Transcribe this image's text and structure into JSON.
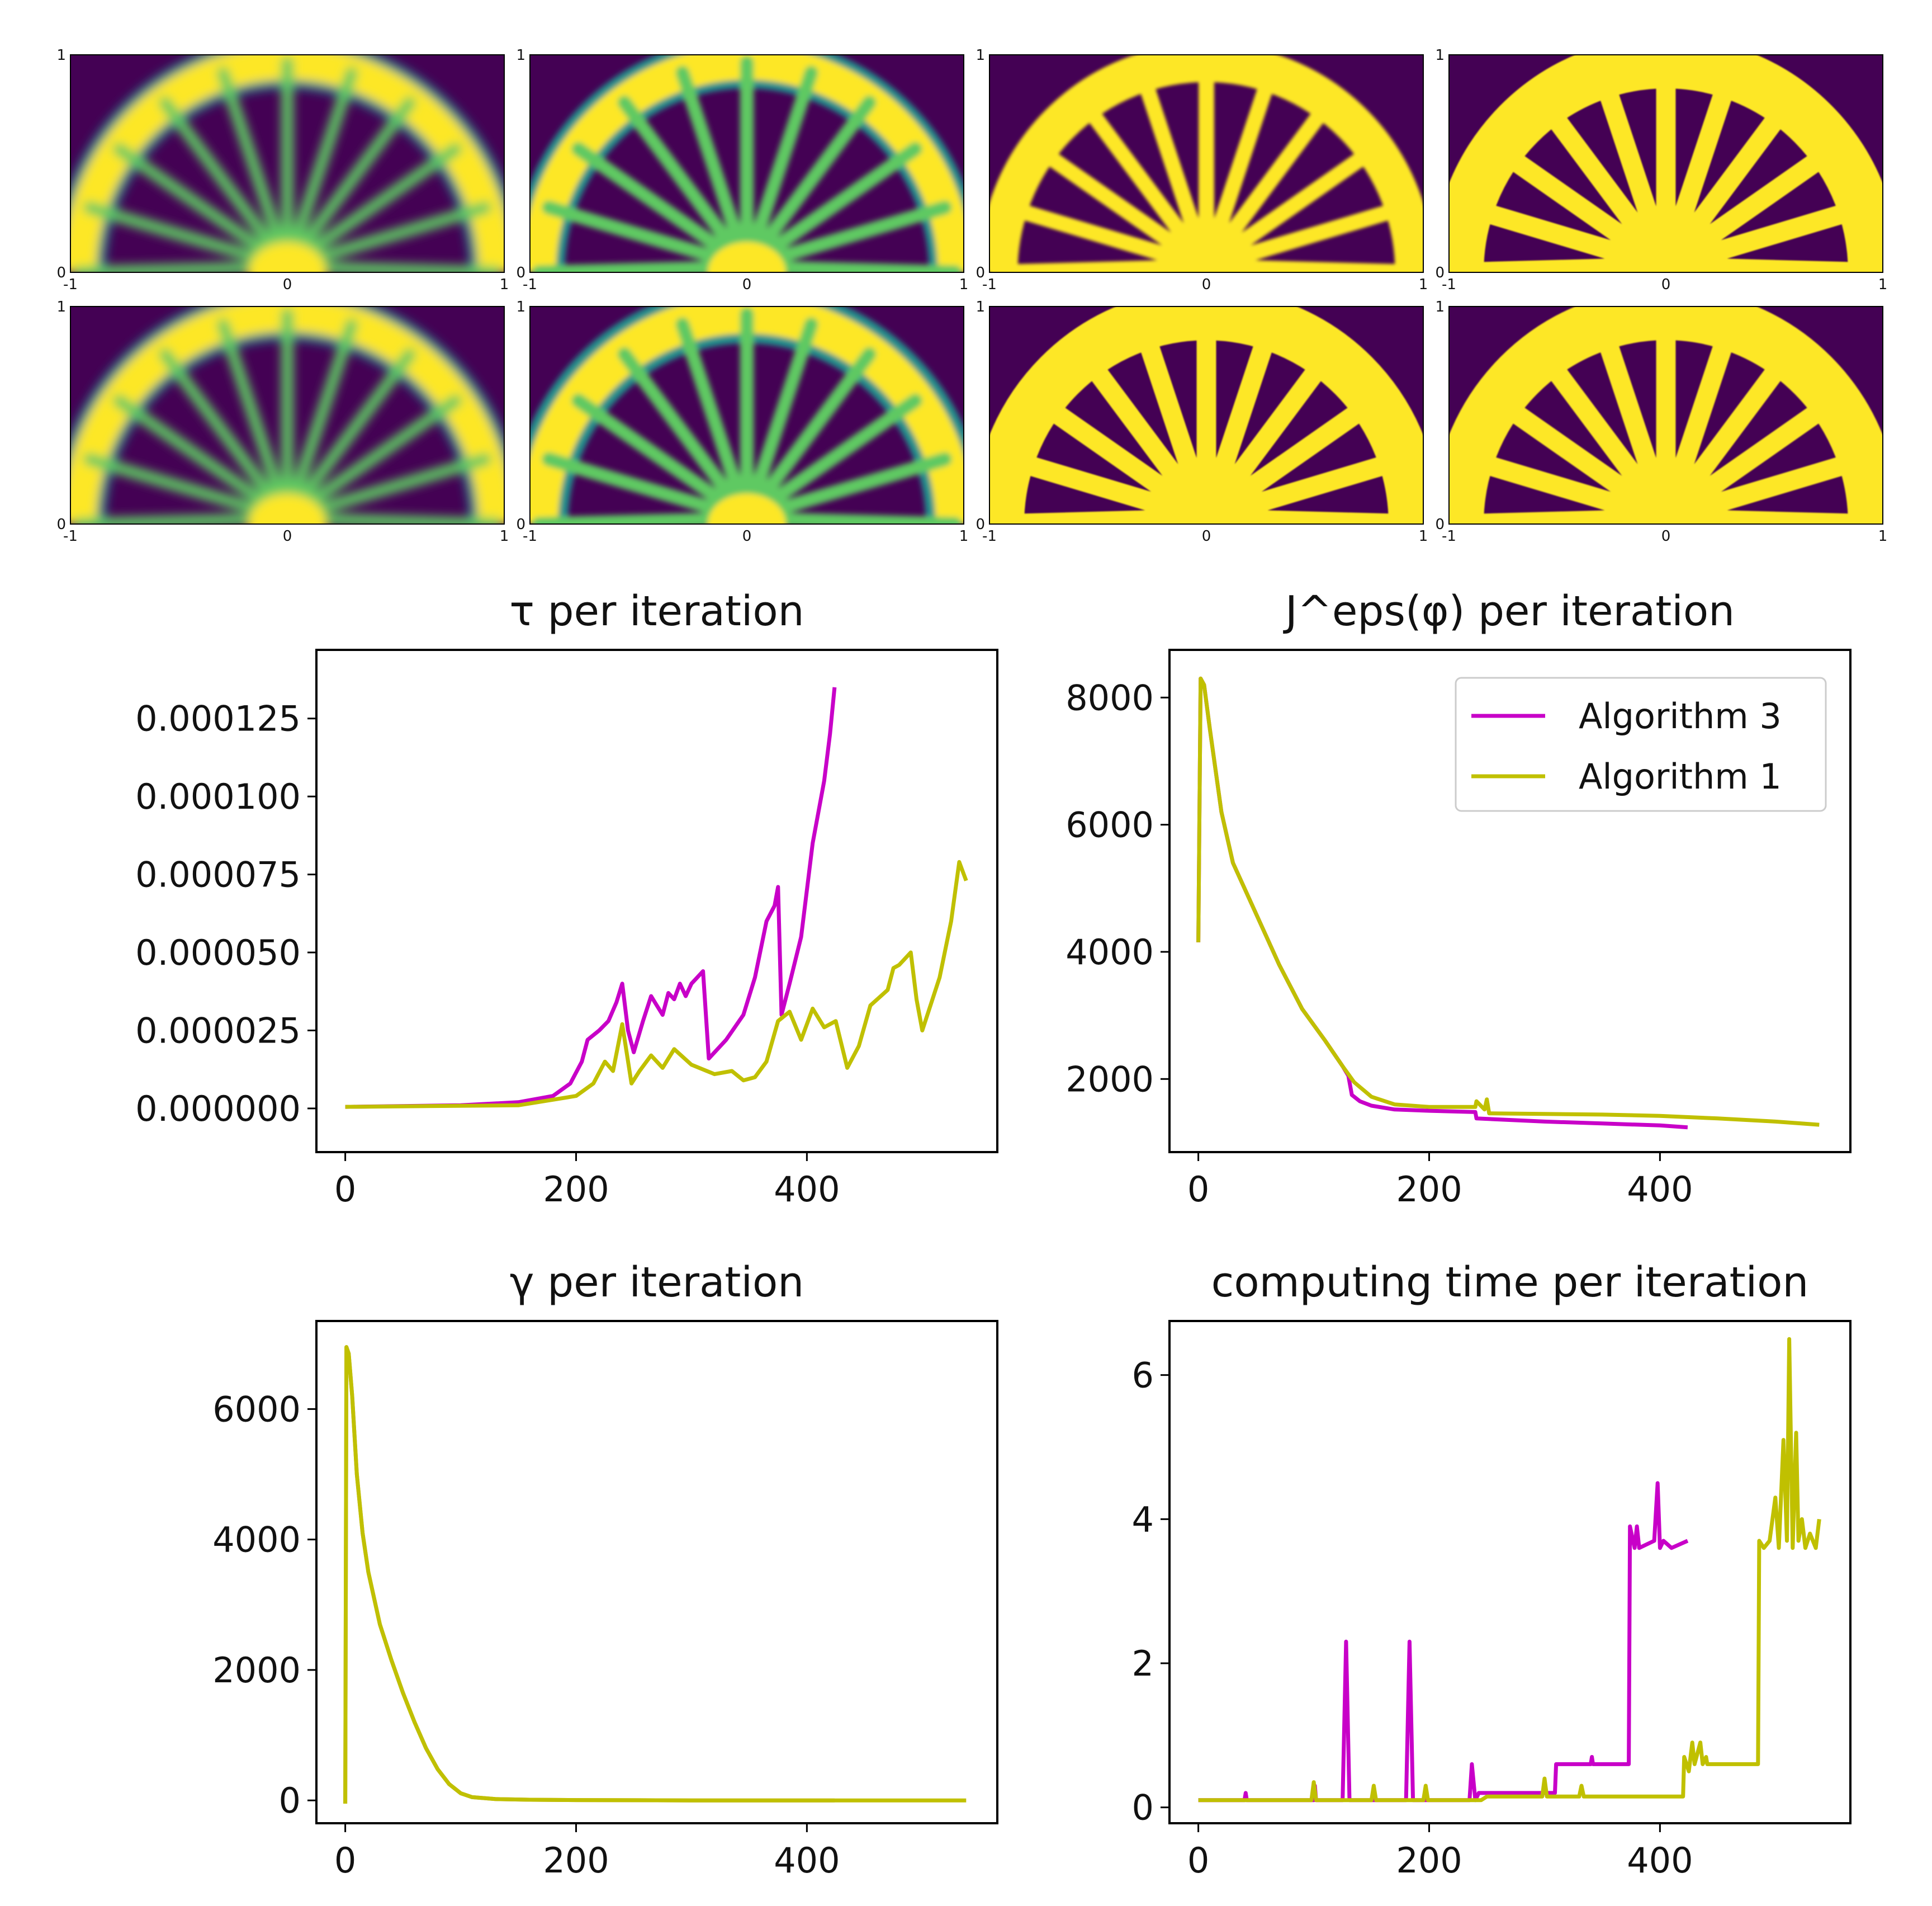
{
  "colors": {
    "alg3": "#c800c8",
    "alg1": "#c0c000",
    "overlap": "#c89a3c",
    "viridis_dark": "#440154",
    "viridis_teal": "#21918c",
    "viridis_green": "#5ec962",
    "viridis_yellow": "#fde725"
  },
  "images": {
    "xticks": [
      "-1",
      "0",
      "1"
    ],
    "yticks": [
      "0",
      "1"
    ],
    "description_rows": 2,
    "description_cols": 4,
    "panels": [
      {
        "row": 0,
        "col": 0,
        "thickness": 0.06,
        "blur": 0.7,
        "arc": 0.08
      },
      {
        "row": 0,
        "col": 1,
        "thickness": 0.07,
        "blur": 0.4,
        "arc": 0.08
      },
      {
        "row": 0,
        "col": 2,
        "thickness": 0.08,
        "blur": 0.3,
        "arc": 0.09
      },
      {
        "row": 0,
        "col": 3,
        "thickness": 0.1,
        "blur": 0.05,
        "arc": 0.12
      },
      {
        "row": 1,
        "col": 0,
        "thickness": 0.06,
        "blur": 0.6,
        "arc": 0.08
      },
      {
        "row": 1,
        "col": 1,
        "thickness": 0.07,
        "blur": 0.35,
        "arc": 0.09
      },
      {
        "row": 1,
        "col": 2,
        "thickness": 0.1,
        "blur": 0.05,
        "arc": 0.12
      },
      {
        "row": 1,
        "col": 3,
        "thickness": 0.1,
        "blur": 0.05,
        "arc": 0.12
      }
    ]
  },
  "chart_data": [
    {
      "type": "line",
      "title": "τ per iteration",
      "xlim": [
        -25,
        565
      ],
      "ylim": [
        -1.4e-05,
        0.000147
      ],
      "xticks": [
        0,
        200,
        400
      ],
      "xtick_labels": [
        "0",
        "200",
        "400"
      ],
      "yticks": [
        0,
        2.5e-05,
        5e-05,
        7.5e-05,
        0.0001,
        0.000125
      ],
      "ytick_labels": [
        "0.000000",
        "0.000025",
        "0.000050",
        "0.000075",
        "0.000100",
        "0.000125"
      ],
      "series": [
        {
          "name": "Algorithm 3",
          "color": "alg3",
          "x": [
            0,
            100,
            150,
            180,
            195,
            205,
            210,
            220,
            228,
            235,
            240,
            245,
            250,
            258,
            265,
            270,
            275,
            280,
            285,
            290,
            295,
            300,
            305,
            310,
            315,
            330,
            345,
            355,
            365,
            372,
            375,
            378,
            385,
            395,
            405,
            415,
            420,
            424
          ],
          "y": [
            5e-07,
            1e-06,
            2e-06,
            4e-06,
            8e-06,
            1.5e-05,
            2.2e-05,
            2.5e-05,
            2.8e-05,
            3.4e-05,
            4e-05,
            2.5e-05,
            1.8e-05,
            2.8e-05,
            3.6e-05,
            3.3e-05,
            3e-05,
            3.7e-05,
            3.5e-05,
            4e-05,
            3.6e-05,
            4e-05,
            4.2e-05,
            4.4e-05,
            1.6e-05,
            2.2e-05,
            3e-05,
            4.2e-05,
            6e-05,
            6.5e-05,
            7.1e-05,
            3e-05,
            4e-05,
            5.5e-05,
            8.5e-05,
            0.000105,
            0.00012,
            0.000135
          ]
        },
        {
          "name": "Algorithm 1",
          "color": "alg1",
          "x": [
            0,
            150,
            200,
            215,
            225,
            232,
            240,
            248,
            255,
            265,
            275,
            285,
            300,
            320,
            335,
            345,
            355,
            365,
            375,
            385,
            395,
            405,
            415,
            425,
            435,
            445,
            455,
            470,
            475,
            480,
            490,
            495,
            500,
            515,
            525,
            532,
            538
          ],
          "y": [
            5e-07,
            1e-06,
            4e-06,
            8e-06,
            1.5e-05,
            1.2e-05,
            2.7e-05,
            8e-06,
            1.2e-05,
            1.7e-05,
            1.3e-05,
            1.9e-05,
            1.4e-05,
            1.1e-05,
            1.2e-05,
            9e-06,
            1e-05,
            1.5e-05,
            2.8e-05,
            3.1e-05,
            2.2e-05,
            3.2e-05,
            2.6e-05,
            2.8e-05,
            1.3e-05,
            2e-05,
            3.3e-05,
            3.8e-05,
            4.5e-05,
            4.6e-05,
            5e-05,
            3.5e-05,
            2.5e-05,
            4.2e-05,
            6e-05,
            7.9e-05,
            7.3e-05
          ]
        }
      ]
    },
    {
      "type": "line",
      "title": "J^eps(φ) per iteration",
      "xlim": [
        -25,
        565
      ],
      "ylim": [
        850,
        8750
      ],
      "xticks": [
        0,
        200,
        400
      ],
      "xtick_labels": [
        "0",
        "200",
        "400"
      ],
      "yticks": [
        2000,
        4000,
        6000,
        8000
      ],
      "ytick_labels": [
        "2000",
        "4000",
        "6000",
        "8000"
      ],
      "legend": {
        "position": "upper right",
        "entries": [
          "Algorithm 3",
          "Algorithm 1"
        ]
      },
      "series": [
        {
          "name": "Algorithm 3",
          "color": "alg3",
          "x": [
            0,
            2,
            5,
            10,
            20,
            30,
            50,
            70,
            90,
            110,
            125,
            130,
            133,
            140,
            150,
            170,
            200,
            240,
            241,
            300,
            350,
            400,
            424
          ],
          "y": [
            4150,
            8300,
            8200,
            7500,
            6200,
            5400,
            4600,
            3800,
            3100,
            2600,
            2200,
            2050,
            1750,
            1650,
            1580,
            1520,
            1500,
            1480,
            1380,
            1330,
            1300,
            1270,
            1240
          ]
        },
        {
          "name": "Algorithm 1",
          "color": "alg1",
          "x": [
            0,
            2,
            5,
            10,
            20,
            30,
            50,
            70,
            90,
            110,
            125,
            135,
            150,
            170,
            200,
            240,
            241,
            248,
            250,
            252,
            300,
            350,
            400,
            450,
            500,
            538
          ],
          "y": [
            4150,
            8300,
            8200,
            7500,
            6200,
            5400,
            4600,
            3800,
            3100,
            2600,
            2200,
            1950,
            1720,
            1600,
            1560,
            1560,
            1650,
            1520,
            1680,
            1460,
            1450,
            1440,
            1420,
            1380,
            1330,
            1280
          ]
        }
      ]
    },
    {
      "type": "line",
      "title": "γ per iteration",
      "xlim": [
        -25,
        565
      ],
      "ylim": [
        -350,
        7350
      ],
      "xticks": [
        0,
        200,
        400
      ],
      "xtick_labels": [
        "0",
        "200",
        "400"
      ],
      "yticks": [
        0,
        2000,
        4000,
        6000
      ],
      "ytick_labels": [
        "0",
        "2000",
        "4000",
        "6000"
      ],
      "series": [
        {
          "name": "Algorithm 3",
          "color": "overlap",
          "x": [
            0,
            1,
            3,
            6,
            10,
            15,
            20,
            30,
            40,
            50,
            60,
            70,
            80,
            90,
            100,
            110,
            130,
            160,
            200,
            300,
            424
          ],
          "y": [
            -50,
            6950,
            6850,
            6200,
            5000,
            4100,
            3500,
            2700,
            2150,
            1650,
            1200,
            800,
            480,
            250,
            110,
            50,
            20,
            10,
            5,
            0,
            0
          ]
        },
        {
          "name": "Algorithm 1",
          "color": "alg1",
          "x": [
            0,
            1,
            3,
            6,
            10,
            15,
            20,
            30,
            40,
            50,
            60,
            70,
            80,
            90,
            100,
            110,
            130,
            160,
            200,
            300,
            538
          ],
          "y": [
            -50,
            6950,
            6850,
            6200,
            5000,
            4100,
            3500,
            2700,
            2150,
            1650,
            1200,
            800,
            480,
            250,
            110,
            50,
            20,
            10,
            5,
            0,
            0
          ]
        }
      ]
    },
    {
      "type": "line",
      "title": "computing time per iteration",
      "xlim": [
        -25,
        565
      ],
      "ylim": [
        -0.22,
        6.75
      ],
      "xticks": [
        0,
        200,
        400
      ],
      "xtick_labels": [
        "0",
        "200",
        "400"
      ],
      "yticks": [
        0,
        2,
        4,
        6
      ],
      "ytick_labels": [
        "0",
        "2",
        "4",
        "6"
      ],
      "series": [
        {
          "name": "Algorithm 3",
          "color": "alg3",
          "x": [
            0,
            40,
            41,
            42,
            100,
            101,
            102,
            125,
            128,
            131,
            134,
            180,
            183,
            186,
            189,
            235,
            237,
            240,
            243,
            309,
            310,
            340,
            341,
            342,
            373,
            374,
            378,
            380,
            382,
            395,
            398,
            400,
            403,
            410,
            424
          ],
          "y": [
            0.1,
            0.1,
            0.2,
            0.1,
            0.1,
            0.3,
            0.1,
            0.1,
            2.3,
            0.1,
            0.1,
            0.1,
            2.3,
            0.1,
            0.1,
            0.1,
            0.6,
            0.1,
            0.2,
            0.2,
            0.6,
            0.6,
            0.7,
            0.6,
            0.6,
            3.9,
            3.6,
            3.9,
            3.6,
            3.7,
            4.5,
            3.6,
            3.7,
            3.6,
            3.7
          ]
        },
        {
          "name": "Algorithm 1",
          "color": "alg1",
          "x": [
            0,
            98,
            100,
            102,
            150,
            152,
            154,
            195,
            197,
            199,
            245,
            250,
            298,
            300,
            302,
            330,
            332,
            334,
            350,
            420,
            421,
            425,
            428,
            430,
            435,
            437,
            440,
            441,
            485,
            486,
            490,
            495,
            500,
            503,
            507,
            510,
            512,
            515,
            518,
            520,
            523,
            526,
            530,
            535,
            538
          ],
          "y": [
            0.1,
            0.1,
            0.35,
            0.1,
            0.1,
            0.3,
            0.1,
            0.1,
            0.3,
            0.1,
            0.1,
            0.15,
            0.15,
            0.4,
            0.15,
            0.15,
            0.3,
            0.15,
            0.15,
            0.15,
            0.7,
            0.5,
            0.9,
            0.6,
            0.9,
            0.6,
            0.7,
            0.6,
            0.6,
            3.7,
            3.6,
            3.7,
            4.3,
            3.6,
            5.1,
            3.7,
            6.5,
            3.6,
            5.2,
            3.7,
            4.0,
            3.6,
            3.8,
            3.6,
            4.0
          ]
        }
      ]
    }
  ]
}
